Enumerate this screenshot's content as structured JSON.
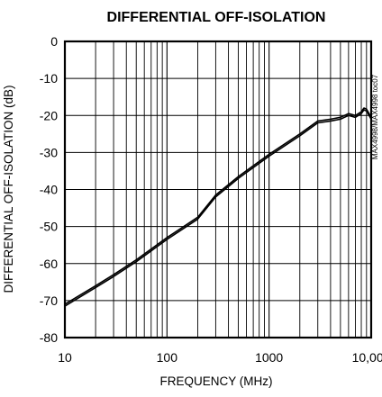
{
  "chart_data": {
    "type": "line",
    "title": "DIFFERENTIAL OFF-ISOLATION",
    "xlabel": "FREQUENCY (MHz)",
    "ylabel": "DIFFERENTIAL OFF-ISOLATION (dB)",
    "figure_id": "MAX4998/MAX4998 toc07",
    "x_scale": "log",
    "xlim": [
      10,
      10000
    ],
    "ylim": [
      -80,
      0
    ],
    "grid": true,
    "x_ticks": [
      {
        "value": 10,
        "label": "10"
      },
      {
        "value": 100,
        "label": "100"
      },
      {
        "value": 1000,
        "label": "1000"
      },
      {
        "value": 10000,
        "label": "10,000"
      }
    ],
    "y_ticks": [
      {
        "value": 0,
        "label": "0"
      },
      {
        "value": -10,
        "label": "-10"
      },
      {
        "value": -20,
        "label": "-20"
      },
      {
        "value": -30,
        "label": "-30"
      },
      {
        "value": -40,
        "label": "-40"
      },
      {
        "value": -50,
        "label": "-50"
      },
      {
        "value": -60,
        "label": "-60"
      },
      {
        "value": -70,
        "label": "-70"
      },
      {
        "value": -80,
        "label": "-80"
      }
    ],
    "series": [
      {
        "x": [
          10,
          20,
          30,
          50,
          100,
          200,
          300,
          500,
          1000,
          2000,
          3000,
          4000,
          5000,
          6000,
          7000,
          8000,
          8500,
          9000,
          10000
        ],
        "y": [
          -71.5,
          -66.5,
          -63.5,
          -59.5,
          -53.5,
          -48,
          -42,
          -37,
          -31,
          -25.5,
          -22,
          -21.5,
          -21,
          -20,
          -20.5,
          -19.5,
          -18.5,
          -18.8,
          -21
        ]
      },
      {
        "x": [
          10,
          20,
          30,
          50,
          100,
          200,
          300,
          500,
          1000,
          2000,
          3000,
          4000,
          5000,
          6000,
          7000,
          8000,
          8500,
          9000,
          10000
        ],
        "y": [
          -71,
          -66,
          -63,
          -59,
          -53,
          -47.5,
          -41.5,
          -36.5,
          -30.5,
          -25,
          -21.5,
          -21,
          -20.5,
          -19.5,
          -20,
          -19,
          -18,
          -18.3,
          -20.5
        ]
      }
    ]
  }
}
